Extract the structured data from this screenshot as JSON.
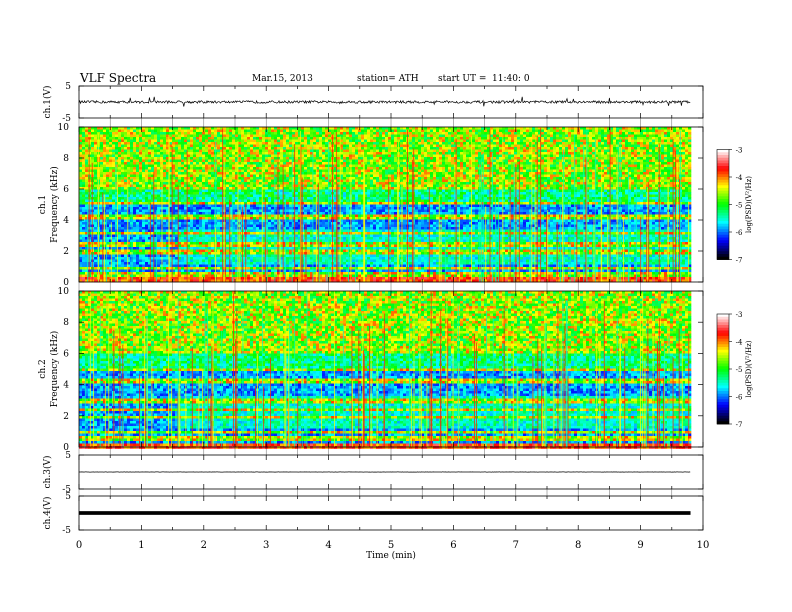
{
  "header": {
    "title": "VLF  Spectra",
    "date": "Mar.15, 2013",
    "station": "station= ATH",
    "start_label": "start  UT  =",
    "start_time": "11:40: 0"
  },
  "chart_data": [
    {
      "type": "line",
      "panel": "ch1-waveform",
      "ylabel": "ch.1(V)",
      "ylim": [
        -5,
        5
      ],
      "yticks": [
        "5",
        "-5"
      ],
      "xlim": [
        0,
        10
      ],
      "data_end_min": 9.8,
      "series": [
        {
          "values_baseline": 0,
          "amplitude": 0.8
        }
      ]
    },
    {
      "type": "heatmap",
      "panel": "ch1-spectrogram",
      "ylabel_top": "ch.1",
      "ylabel": "Frequency  (kHz)",
      "ylim": [
        0,
        10
      ],
      "yticks": [
        "0",
        "2",
        "4",
        "6",
        "8",
        "10"
      ],
      "xlim": [
        0,
        10
      ],
      "data_end_min": 9.8,
      "colorbar": {
        "label": "log(PSD)(V²/Hz)",
        "range": [
          -7,
          -3
        ],
        "ticks": [
          "-3",
          "-4",
          "-5",
          "-6",
          "-7"
        ]
      },
      "bands_khz": [
        0.3,
        0.6,
        1.0,
        2.0,
        2.5,
        3.2,
        4.3,
        5.2
      ],
      "change_time_min": 1.55
    },
    {
      "type": "heatmap",
      "panel": "ch2-spectrogram",
      "ylabel_top": "ch.2",
      "ylabel": "Frequency  (kHz)",
      "ylim": [
        0,
        10
      ],
      "yticks": [
        "0",
        "2",
        "4",
        "6",
        "8",
        "10"
      ],
      "xlim": [
        0,
        10
      ],
      "data_end_min": 9.8,
      "colorbar": {
        "label": "log(PSD)(V²/Hz)",
        "range": [
          -7,
          -3
        ],
        "ticks": [
          "-3",
          "-4",
          "-5",
          "-6",
          "-7"
        ]
      },
      "bands_khz": [
        0.6,
        1.0,
        2.0,
        2.5,
        3.0,
        4.3,
        5.0
      ],
      "change_time_min": 1.55
    },
    {
      "type": "line",
      "panel": "ch3-waveform",
      "ylabel": "ch.3(V)",
      "ylim": [
        -5,
        5
      ],
      "yticks": [
        "5",
        "-5"
      ],
      "xlim": [
        0,
        10
      ],
      "data_end_min": 9.8,
      "series": [
        {
          "values_baseline": 0,
          "amplitude": 0.05
        }
      ]
    },
    {
      "type": "line",
      "panel": "ch4-waveform",
      "ylabel": "ch.4(V)",
      "ylim": [
        -5,
        5
      ],
      "yticks": [
        "5",
        "-5"
      ],
      "xlim": [
        0,
        10
      ],
      "data_end_min": 9.8,
      "series": [
        {
          "values_baseline": 0,
          "amplitude": 0.25
        }
      ]
    }
  ],
  "xaxis": {
    "label": "Time  (min)",
    "ticks": [
      "0",
      "1",
      "2",
      "3",
      "4",
      "5",
      "6",
      "7",
      "8",
      "9",
      "10"
    ]
  },
  "colors": {
    "colormap": [
      "#000000",
      "#0000ff",
      "#00ffff",
      "#00ff00",
      "#ffff00",
      "#ff0000",
      "#ffffff"
    ]
  }
}
